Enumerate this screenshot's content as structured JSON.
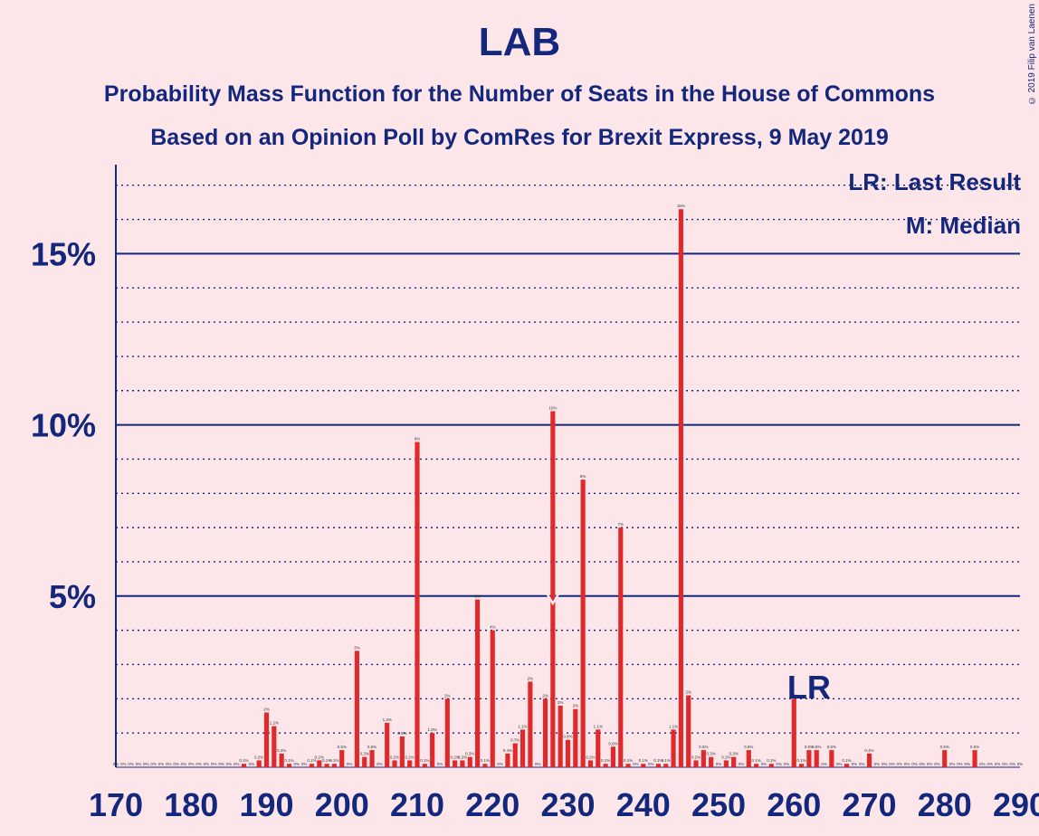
{
  "title": "LAB",
  "subtitle1": "Probability Mass Function for the Number of Seats in the House of Commons",
  "subtitle2": "Based on an Opinion Poll by ComRes for Brexit Express, 9 May 2019",
  "copyright": "© 2019 Filip van Laenen",
  "legend": {
    "last_result": "LR: Last Result",
    "median": "M: Median"
  },
  "colors": {
    "background": "#fde6ea",
    "bar": "#e0292a",
    "axis": "#13277c"
  },
  "chart_data": {
    "type": "bar",
    "x_range": [
      170,
      290
    ],
    "x_ticks": [
      170,
      180,
      190,
      200,
      210,
      220,
      230,
      240,
      250,
      260,
      270,
      280,
      290
    ],
    "ylim": [
      0,
      17.6
    ],
    "y_ticks": [
      {
        "value": 5,
        "label": "5%"
      },
      {
        "value": 10,
        "label": "10%"
      },
      {
        "value": 15,
        "label": "15%"
      }
    ],
    "gridlines": "dotted every 1%, solid every 5%",
    "last_result": {
      "seat": 262,
      "label": "LR"
    },
    "median": {
      "seat": 228,
      "label": "M"
    },
    "seats": [
      170,
      171,
      172,
      173,
      174,
      175,
      176,
      177,
      178,
      179,
      180,
      181,
      182,
      183,
      184,
      185,
      186,
      187,
      188,
      189,
      190,
      191,
      192,
      193,
      194,
      195,
      196,
      197,
      198,
      199,
      200,
      201,
      202,
      203,
      204,
      205,
      206,
      207,
      208,
      209,
      210,
      211,
      212,
      213,
      214,
      215,
      216,
      217,
      218,
      219,
      220,
      221,
      222,
      223,
      224,
      225,
      226,
      227,
      228,
      229,
      230,
      231,
      232,
      233,
      234,
      235,
      236,
      237,
      238,
      239,
      240,
      241,
      242,
      243,
      244,
      245,
      246,
      247,
      248,
      249,
      250,
      251,
      252,
      253,
      254,
      255,
      256,
      257,
      258,
      259,
      260,
      261,
      262,
      263,
      264,
      265,
      266,
      267,
      268,
      269,
      270,
      271,
      272,
      273,
      274,
      275,
      276,
      277,
      278,
      279,
      280,
      281,
      282,
      283,
      284,
      285,
      286,
      287,
      288,
      289,
      290
    ],
    "values": [
      0,
      0,
      0,
      0,
      0,
      0,
      0,
      0,
      0,
      0,
      0,
      0,
      0,
      0,
      0,
      0,
      0,
      0.1,
      0,
      0.2,
      1.6,
      1.2,
      0.4,
      0.1,
      0,
      0,
      0.1,
      0.2,
      0.1,
      0.1,
      0.5,
      0,
      3.4,
      0.3,
      0.5,
      0,
      1.3,
      0.2,
      0.9,
      0.2,
      9.5,
      0.1,
      1.0,
      0,
      2.0,
      0.2,
      0.2,
      0.3,
      4.9,
      0.1,
      4.0,
      0,
      0.4,
      0.7,
      1.1,
      2.5,
      0,
      2.0,
      10.4,
      1.8,
      0.8,
      1.7,
      8.4,
      0.2,
      1.1,
      0.1,
      0.6,
      7.0,
      0.1,
      0,
      0.1,
      0,
      0.1,
      0.1,
      1.1,
      16.3,
      2.1,
      0.2,
      0.5,
      0.3,
      0,
      0.2,
      0.3,
      0,
      0.5,
      0.1,
      0,
      0.1,
      0,
      0,
      2.0,
      0.1,
      0.5,
      0.5,
      0,
      0.5,
      0,
      0.1,
      0,
      0,
      0.4,
      0,
      0,
      0,
      0,
      0,
      0,
      0,
      0,
      0,
      0.5,
      0,
      0,
      0,
      0.5,
      0,
      0,
      0,
      0,
      0,
      0
    ],
    "labels": [
      "0%",
      "0%",
      "0%",
      "0%",
      "0%",
      "0%",
      "0%",
      "0%",
      "0%",
      "0%",
      "0%",
      "0%",
      "0%",
      "0%",
      "0%",
      "0%",
      "0%",
      "0.1%",
      "0%",
      "0.2%",
      "2%",
      "1.2%",
      "0.4%",
      "0.1%",
      "0%",
      "0%",
      "0.1%",
      "0.2%",
      "0.1%",
      "0.1%",
      "0.5%",
      "0%",
      "3%",
      "0.3%",
      "0.5%",
      "0%",
      "1.3%",
      "0.2%",
      "0.9%",
      "0.2%",
      "9%",
      "0.1%",
      "1.0%",
      "0%",
      "2%",
      "0.2%",
      "0.2%",
      "0.3%",
      "5%",
      "0.1%",
      "4%",
      "0%",
      "0.4%",
      "0.7%",
      "1.1%",
      "2%",
      "0%",
      "2%",
      "10%",
      "2%",
      "0.8%",
      "2%",
      "8%",
      "0.2%",
      "1.1%",
      "0.1%",
      "0.6%",
      "7%",
      "0.1%",
      "0%",
      "0.1%",
      "0%",
      "0.1%",
      "0.1%",
      "1.1%",
      "16%",
      "2%",
      "0.2%",
      "0.5%",
      "0.3%",
      "0%",
      "0.2%",
      "0.3%",
      "0%",
      "0.5%",
      "0.1%",
      "0%",
      "0.1%",
      "0%",
      "0%",
      "2%",
      "0.1%",
      "0.5%",
      "0.5%",
      "0%",
      "0.5%",
      "0%",
      "0.1%",
      "0%",
      "0%",
      "0.4%",
      "0%",
      "0%",
      "0%",
      "0%",
      "0%",
      "0%",
      "0%",
      "0%",
      "0%",
      "0.5%",
      "0%",
      "0%",
      "0%",
      "0.5%",
      "0%",
      "0%",
      "0%",
      "0%",
      "0%",
      "0%"
    ]
  }
}
